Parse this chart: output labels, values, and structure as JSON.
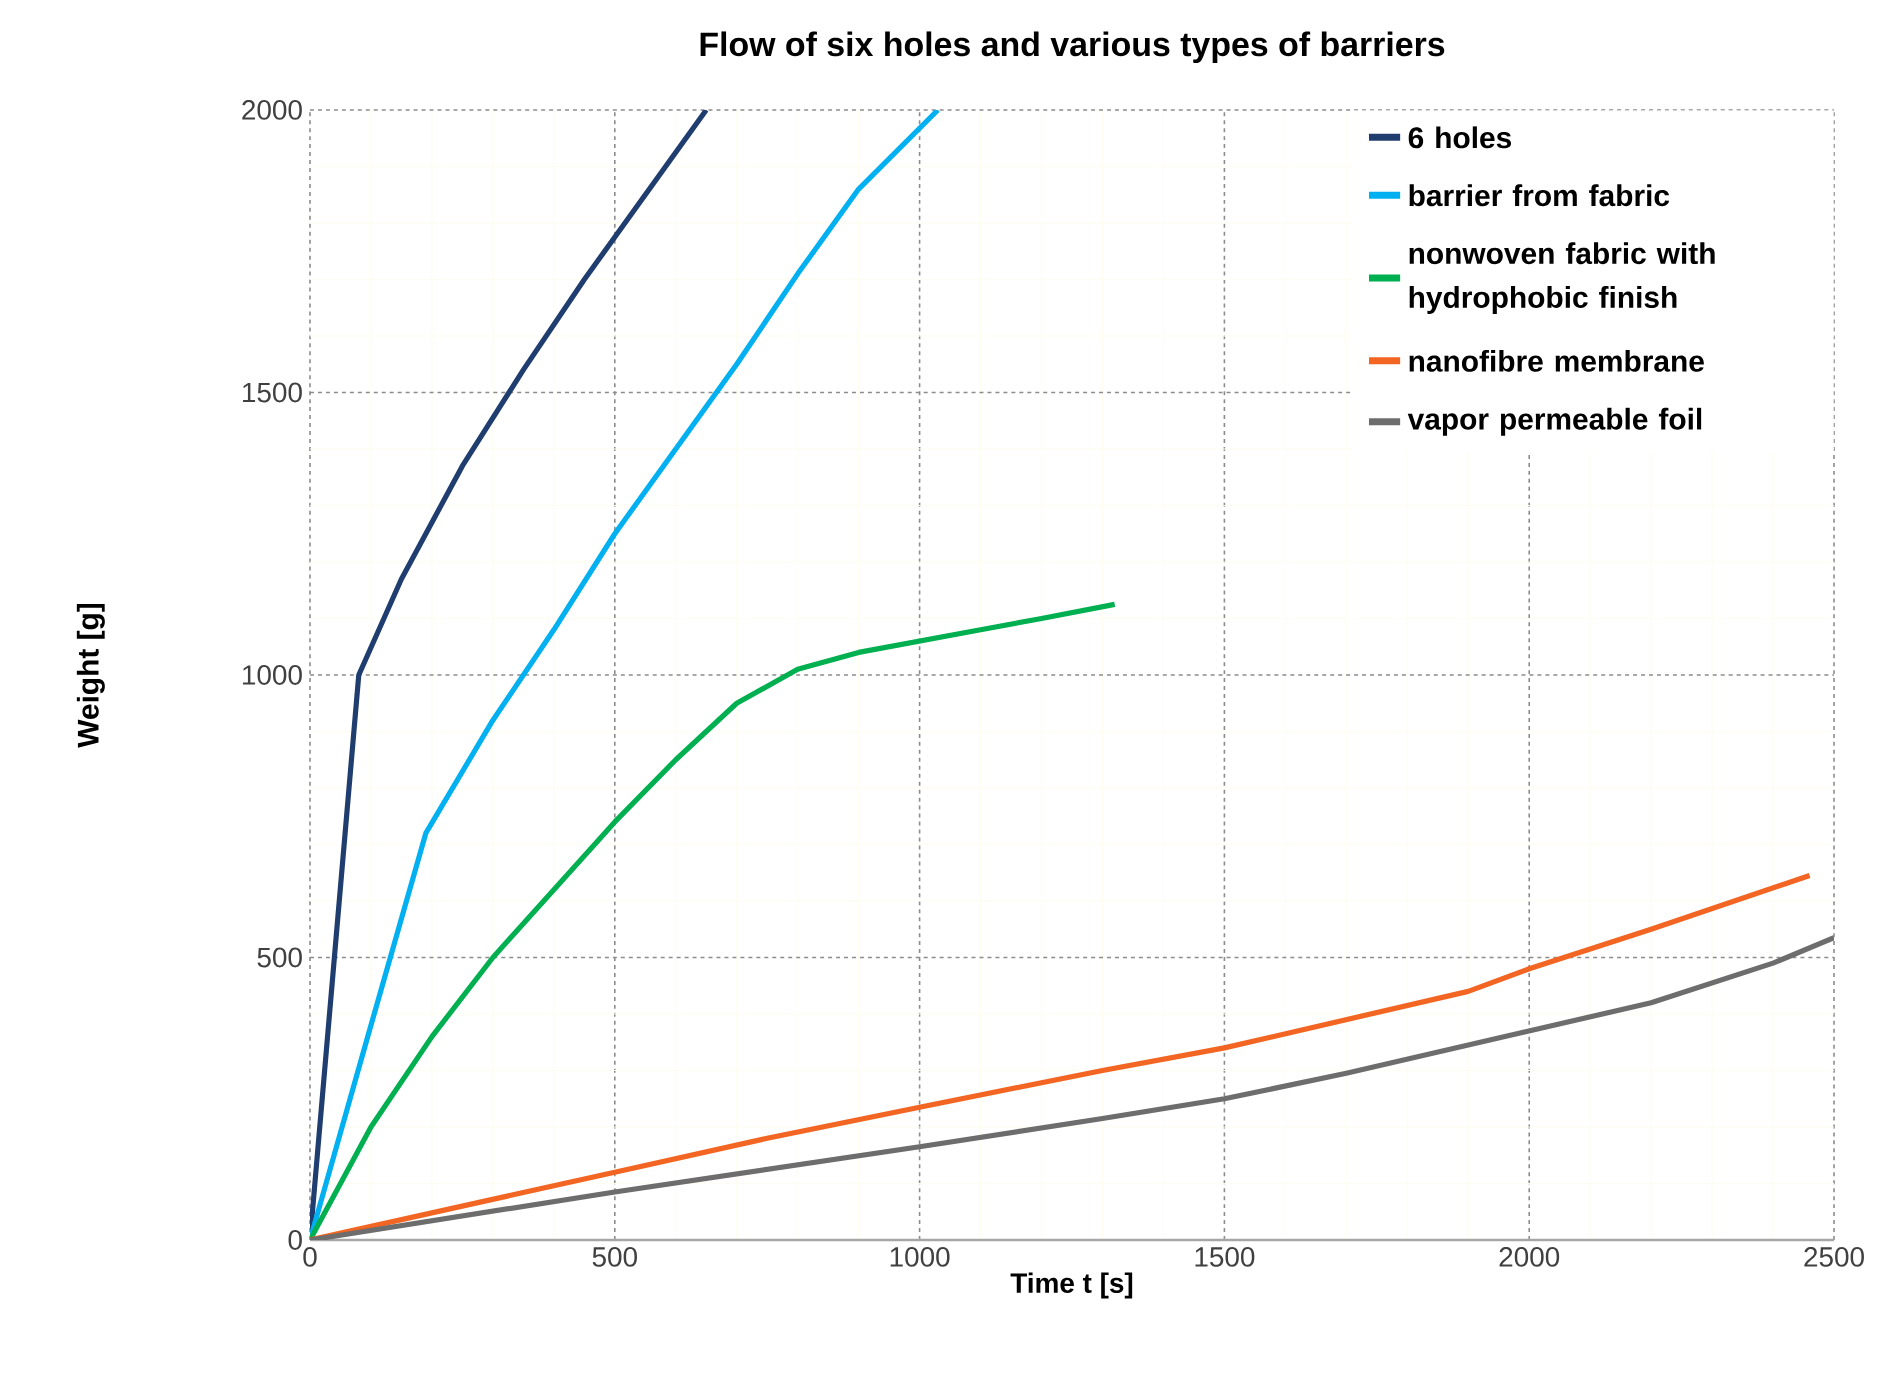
{
  "chart_data": {
    "type": "line",
    "title": "Flow of six holes and various types of barriers",
    "xlabel": "Time  t [s]",
    "ylabel": "Weight [g]",
    "xlim": [
      0,
      2500
    ],
    "ylim": [
      0,
      2000
    ],
    "xticks": [
      0,
      500,
      1000,
      1500,
      2000,
      2500
    ],
    "yticks": [
      0,
      500,
      1000,
      1500,
      2000
    ],
    "grid": true,
    "legend": "top right",
    "marker": "none",
    "line_style": "solid",
    "series": [
      {
        "name": "6 holes",
        "color": "#1f3d6e",
        "x": [
          0,
          40,
          80,
          150,
          250,
          350,
          450,
          550,
          650
        ],
        "values": [
          0,
          500,
          1000,
          1170,
          1370,
          1540,
          1700,
          1850,
          2000
        ]
      },
      {
        "name": "barrier from fabric",
        "color": "#00b0f0",
        "x": [
          0,
          100,
          190,
          300,
          400,
          500,
          600,
          700,
          800,
          900,
          1030
        ],
        "values": [
          0,
          380,
          720,
          920,
          1080,
          1250,
          1400,
          1550,
          1710,
          1860,
          2000
        ]
      },
      {
        "name": "nonwoven fabric with hydrophobic finish",
        "color": "#00b050",
        "x": [
          0,
          100,
          200,
          300,
          400,
          500,
          600,
          700,
          800,
          900,
          1000,
          1100,
          1200,
          1320
        ],
        "values": [
          0,
          200,
          360,
          500,
          620,
          740,
          850,
          950,
          1010,
          1040,
          1060,
          1080,
          1100,
          1125
        ]
      },
      {
        "name": "nanofibre membrane",
        "color": "#f26522",
        "x": [
          0,
          250,
          500,
          750,
          1000,
          1300,
          1500,
          1700,
          1900,
          2000,
          2200,
          2460
        ],
        "values": [
          0,
          60,
          120,
          180,
          235,
          300,
          340,
          390,
          440,
          480,
          550,
          645
        ]
      },
      {
        "name": "vapor permeable foil",
        "color": "#6d6d6d",
        "x": [
          0,
          500,
          1000,
          1300,
          1500,
          1700,
          1900,
          2000,
          2200,
          2400,
          2500
        ],
        "values": [
          0,
          85,
          165,
          215,
          250,
          295,
          345,
          370,
          420,
          490,
          535
        ]
      }
    ]
  }
}
